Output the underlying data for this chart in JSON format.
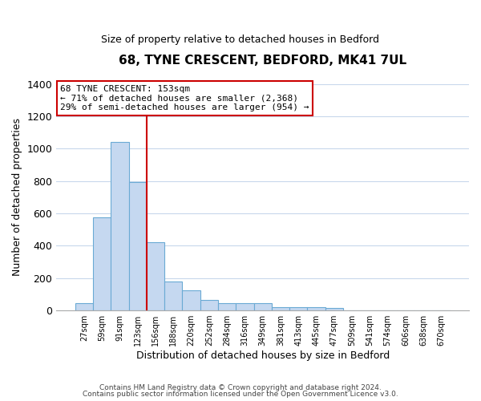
{
  "title": "68, TYNE CRESCENT, BEDFORD, MK41 7UL",
  "subtitle": "Size of property relative to detached houses in Bedford",
  "xlabel": "Distribution of detached houses by size in Bedford",
  "ylabel": "Number of detached properties",
  "bar_labels": [
    "27sqm",
    "59sqm",
    "91sqm",
    "123sqm",
    "156sqm",
    "188sqm",
    "220sqm",
    "252sqm",
    "284sqm",
    "316sqm",
    "349sqm",
    "381sqm",
    "413sqm",
    "445sqm",
    "477sqm",
    "509sqm",
    "541sqm",
    "574sqm",
    "606sqm",
    "638sqm",
    "670sqm"
  ],
  "bar_heights": [
    45,
    575,
    1040,
    795,
    420,
    180,
    125,
    65,
    45,
    45,
    45,
    20,
    20,
    20,
    15,
    0,
    0,
    0,
    0,
    0,
    0
  ],
  "bar_color": "#c5d8f0",
  "bar_edge_color": "#6aaad4",
  "ylim": [
    0,
    1400
  ],
  "yticks": [
    0,
    200,
    400,
    600,
    800,
    1000,
    1200,
    1400
  ],
  "vline_color": "#cc0000",
  "annotation_title": "68 TYNE CRESCENT: 153sqm",
  "annotation_line1": "← 71% of detached houses are smaller (2,368)",
  "annotation_line2": "29% of semi-detached houses are larger (954) →",
  "annotation_box_color": "#ffffff",
  "annotation_box_edge": "#cc0000",
  "footnote1": "Contains HM Land Registry data © Crown copyright and database right 2024.",
  "footnote2": "Contains public sector information licensed under the Open Government Licence v3.0.",
  "bg_color": "#ffffff",
  "grid_color": "#c8d8ec"
}
